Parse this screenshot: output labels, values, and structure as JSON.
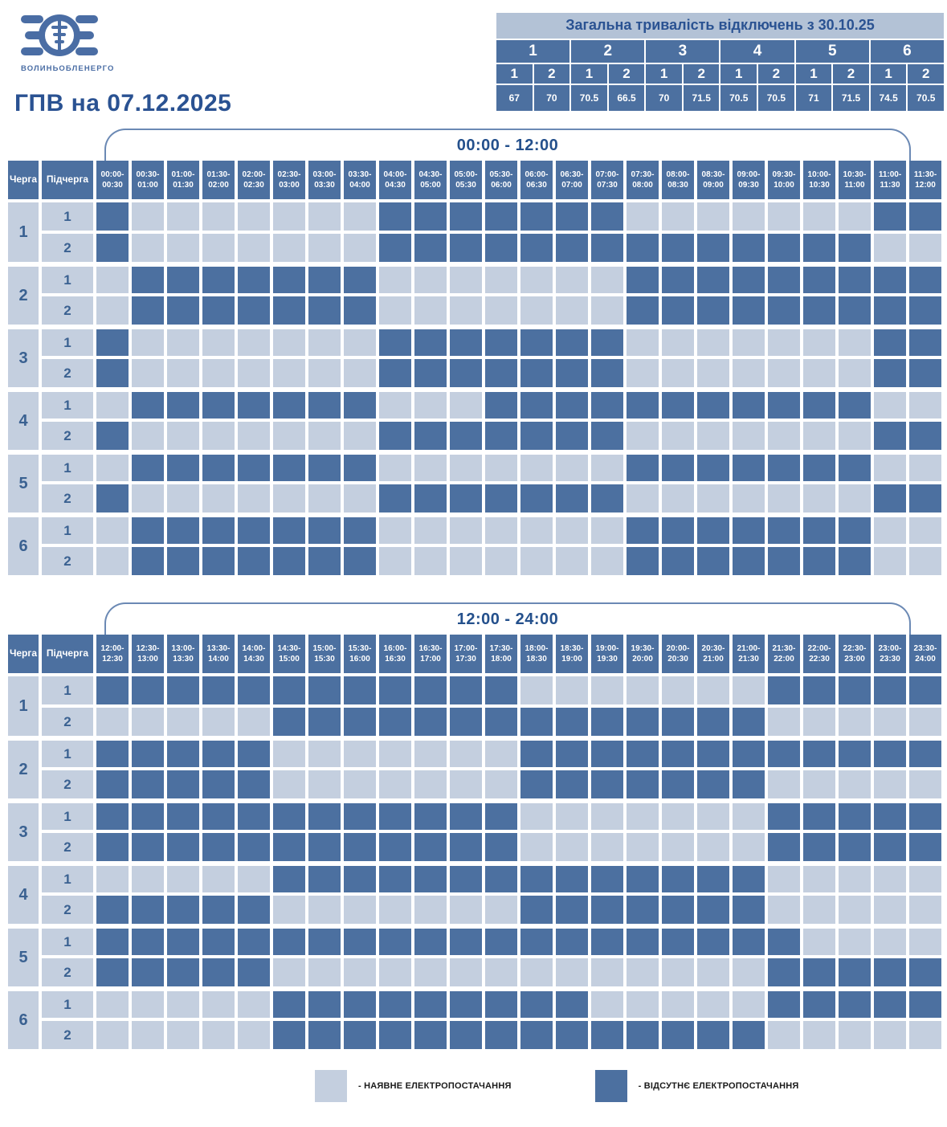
{
  "colors": {
    "dark_cell": "#4C70A0",
    "light_cell": "#C4CFDF",
    "summary_band": "#B3C2D6",
    "navy_text": "#2A5292",
    "bracket_line": "#6B89B4",
    "logo_blue": "#4A6DA4"
  },
  "header": {
    "logo_text": "ЗОЄ",
    "logo_subtext": "ВОЛИНЬОБЛЕНЕРГО",
    "title": "ГПВ на 07.12.2025"
  },
  "summary": {
    "title": "Загальна тривалість відключень з 30.10.25",
    "queues": [
      "1",
      "2",
      "3",
      "4",
      "5",
      "6"
    ],
    "subqueues": [
      "1",
      "2",
      "1",
      "2",
      "1",
      "2",
      "1",
      "2",
      "1",
      "2",
      "1",
      "2"
    ],
    "values": [
      "67",
      "70",
      "70.5",
      "66.5",
      "70",
      "71.5",
      "70.5",
      "70.5",
      "71",
      "71.5",
      "74.5",
      "70.5"
    ]
  },
  "axis": {
    "queue_header": "Черга",
    "subqueue_header": "Підчерга"
  },
  "legend": {
    "available": "- НАЯВНЕ ЕЛЕКТРОПОСТАЧАННЯ",
    "unavailable": "- ВІДСУТНЄ ЕЛЕКТРОПОСТАЧАННЯ"
  },
  "cell_states": {
    "D": "відсутнє електропостачання",
    "L": "наявне електропостачання"
  },
  "tables": [
    {
      "label": "00:00 - 12:00",
      "time_slots": [
        [
          "00:00-",
          "00:30"
        ],
        [
          "00:30-",
          "01:00"
        ],
        [
          "01:00-",
          "01:30"
        ],
        [
          "01:30-",
          "02:00"
        ],
        [
          "02:00-",
          "02:30"
        ],
        [
          "02:30-",
          "03:00"
        ],
        [
          "03:00-",
          "03:30"
        ],
        [
          "03:30-",
          "04:00"
        ],
        [
          "04:00-",
          "04:30"
        ],
        [
          "04:30-",
          "05:00"
        ],
        [
          "05:00-",
          "05:30"
        ],
        [
          "05:30-",
          "06:00"
        ],
        [
          "06:00-",
          "06:30"
        ],
        [
          "06:30-",
          "07:00"
        ],
        [
          "07:00-",
          "07:30"
        ],
        [
          "07:30-",
          "08:00"
        ],
        [
          "08:00-",
          "08:30"
        ],
        [
          "08:30-",
          "09:00"
        ],
        [
          "09:00-",
          "09:30"
        ],
        [
          "09:30-",
          "10:00"
        ],
        [
          "10:00-",
          "10:30"
        ],
        [
          "10:30-",
          "11:00"
        ],
        [
          "11:00-",
          "11:30"
        ],
        [
          "11:30-",
          "12:00"
        ]
      ],
      "rows": [
        {
          "queue": "1",
          "sub": "1",
          "pattern": "DLLLLLLLDDDDDDDLLLLLLLDD"
        },
        {
          "queue": "1",
          "sub": "2",
          "pattern": "DLLLLLLLDDDDDDDDDDDDDDLL"
        },
        {
          "queue": "2",
          "sub": "1",
          "pattern": "LDDDDDDDLLLLLLLDDDDDDDDD"
        },
        {
          "queue": "2",
          "sub": "2",
          "pattern": "LDDDDDDDLLLLLLLDDDDDDDDD"
        },
        {
          "queue": "3",
          "sub": "1",
          "pattern": "DLLLLLLLDDDDDDDLLLLLLLDD"
        },
        {
          "queue": "3",
          "sub": "2",
          "pattern": "DLLLLLLLDDDDDDDLLLLLLLDD"
        },
        {
          "queue": "4",
          "sub": "1",
          "pattern": "LDDDDDDDLLLDDDDDDDDDDDLL"
        },
        {
          "queue": "4",
          "sub": "2",
          "pattern": "DLLLLLLLDDDDDDDLLLLLLLDD"
        },
        {
          "queue": "5",
          "sub": "1",
          "pattern": "LDDDDDDDLLLLLLLDDDDDDDLL"
        },
        {
          "queue": "5",
          "sub": "2",
          "pattern": "DLLLLLLLDDDDDDDLLLLLLLDD"
        },
        {
          "queue": "6",
          "sub": "1",
          "pattern": "LDDDDDDDLLLLLLLDDDDDDDLL"
        },
        {
          "queue": "6",
          "sub": "2",
          "pattern": "LDDDDDDDLLLLLLLDDDDDDDLL"
        }
      ]
    },
    {
      "label": "12:00 - 24:00",
      "time_slots": [
        [
          "12:00-",
          "12:30"
        ],
        [
          "12:30-",
          "13:00"
        ],
        [
          "13:00-",
          "13:30"
        ],
        [
          "13:30-",
          "14:00"
        ],
        [
          "14:00-",
          "14:30"
        ],
        [
          "14:30-",
          "15:00"
        ],
        [
          "15:00-",
          "15:30"
        ],
        [
          "15:30-",
          "16:00"
        ],
        [
          "16:00-",
          "16:30"
        ],
        [
          "16:30-",
          "17:00"
        ],
        [
          "17:00-",
          "17:30"
        ],
        [
          "17:30-",
          "18:00"
        ],
        [
          "18:00-",
          "18:30"
        ],
        [
          "18:30-",
          "19:00"
        ],
        [
          "19:00-",
          "19:30"
        ],
        [
          "19:30-",
          "20:00"
        ],
        [
          "20:00-",
          "20:30"
        ],
        [
          "20:30-",
          "21:00"
        ],
        [
          "21:00-",
          "21:30"
        ],
        [
          "21:30-",
          "22:00"
        ],
        [
          "22:00-",
          "22:30"
        ],
        [
          "22:30-",
          "23:00"
        ],
        [
          "23:00-",
          "23:30"
        ],
        [
          "23:30-",
          "24:00"
        ]
      ],
      "rows": [
        {
          "queue": "1",
          "sub": "1",
          "pattern": "DDDDDDDDDDDDLLLLLLLDDDDD"
        },
        {
          "queue": "1",
          "sub": "2",
          "pattern": "LLLLLDDDDDDDDDDDDDDLLLLL"
        },
        {
          "queue": "2",
          "sub": "1",
          "pattern": "DDDDDLLLLLLLDDDDDDDDDDDD"
        },
        {
          "queue": "2",
          "sub": "2",
          "pattern": "DDDDDLLLLLLLDDDDDDDLLLLL"
        },
        {
          "queue": "3",
          "sub": "1",
          "pattern": "DDDDDDDDDDDDLLLLLLLDDDDD"
        },
        {
          "queue": "3",
          "sub": "2",
          "pattern": "DDDDDDDDDDDDLLLLLLLDDDDD"
        },
        {
          "queue": "4",
          "sub": "1",
          "pattern": "LLLLLDDDDDDDDDDDDDDLLLLL"
        },
        {
          "queue": "4",
          "sub": "2",
          "pattern": "DDDDDLLLLLLLDDDDDDDLLLLL"
        },
        {
          "queue": "5",
          "sub": "1",
          "pattern": "DDDDDDDDDDDDDDDDDDDDLLLL"
        },
        {
          "queue": "5",
          "sub": "2",
          "pattern": "DDDDDLLLLLLLLLLLLLLDDDDD"
        },
        {
          "queue": "6",
          "sub": "1",
          "pattern": "LLLLLDDDDDDDDDLLLLLDDDDD"
        },
        {
          "queue": "6",
          "sub": "2",
          "pattern": "LLLLLDDDDDDDDDDDDDDLLLLL"
        }
      ]
    }
  ]
}
